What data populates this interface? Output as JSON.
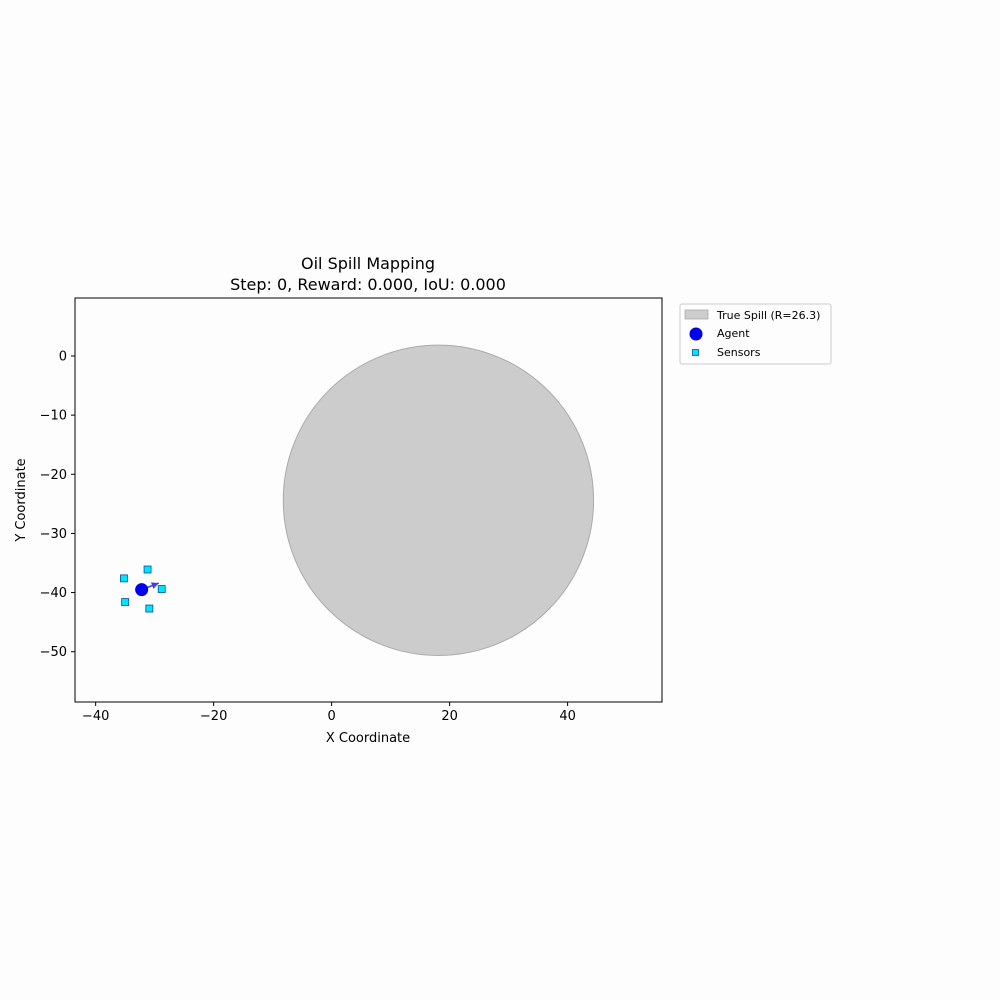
{
  "chart_data": {
    "type": "scatter",
    "title": "Oil Spill Mapping",
    "subtitle": "Step: 0, Reward: 0.000, IoU: 0.000",
    "xlabel": "X Coordinate",
    "ylabel": "Y Coordinate",
    "xlim": [
      -43.5,
      56
    ],
    "ylim": [
      -58.5,
      9.8
    ],
    "xticks": [
      -40,
      -20,
      0,
      20,
      40
    ],
    "yticks": [
      0,
      -10,
      -20,
      -30,
      -40,
      -50
    ],
    "grid": false,
    "legend_position": "outside-top-right",
    "spill": {
      "label": "True Spill (R=26.3)",
      "cx": 18.1,
      "cy": -24.4,
      "r": 26.3,
      "color": "#cccccc"
    },
    "agent": {
      "label": "Agent",
      "x": -32.2,
      "y": -39.5,
      "heading": [
        2.9,
        1.1
      ],
      "color": "#0000ee"
    },
    "sensors": {
      "label": "Sensors",
      "color": "#00e5ff",
      "points": [
        {
          "x": -31.2,
          "y": -36.1
        },
        {
          "x": -35.2,
          "y": -37.6
        },
        {
          "x": -28.8,
          "y": -39.4
        },
        {
          "x": -35.0,
          "y": -41.6
        },
        {
          "x": -30.9,
          "y": -42.7
        }
      ]
    }
  }
}
